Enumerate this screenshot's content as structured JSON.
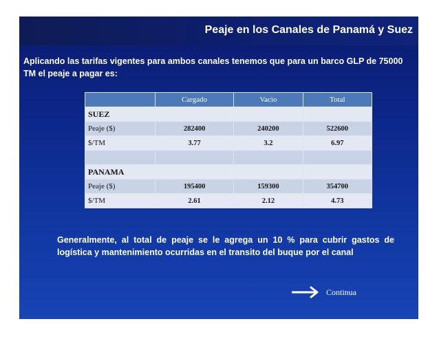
{
  "slide": {
    "title": "Peaje en los Canales de Panamá y Suez",
    "intro": "Aplicando las tarifas vigentes para ambos canales tenemos que para un barco GLP de 75000 TM el peaje a pagar es:",
    "note": "Generalmente, al total de peaje se le agrega un 10 % para cubrir gastos de logística y mantenimiento ocurridas en el transito del buque por el canal",
    "continue_label": "Continua"
  },
  "table": {
    "headers": [
      "",
      "Cargado",
      "Vacio",
      "Total"
    ],
    "suez": {
      "name": "SUEZ",
      "rows": [
        {
          "label": "Peaje ($)",
          "cargado": "282400",
          "vacio": "240200",
          "total": "522600"
        },
        {
          "label": "$/TM",
          "cargado": "3.77",
          "vacio": "3.2",
          "total": "6.97"
        }
      ]
    },
    "panama": {
      "name": "PANAMA",
      "rows": [
        {
          "label": "Peaje ($)",
          "cargado": "195400",
          "vacio": "159300",
          "total": "354700"
        },
        {
          "label": "$/TM",
          "cargado": "2.61",
          "vacio": "2.12",
          "total": "4.73"
        }
      ]
    }
  },
  "colors": {
    "background": "#0d2a8f",
    "header_row": "#4c79b8",
    "row_light": "#c9d3e6",
    "row_lighter": "#e3e8f3",
    "text_white": "#ffffff"
  },
  "icons": {
    "continue_arrow": "right-arrow-icon"
  }
}
